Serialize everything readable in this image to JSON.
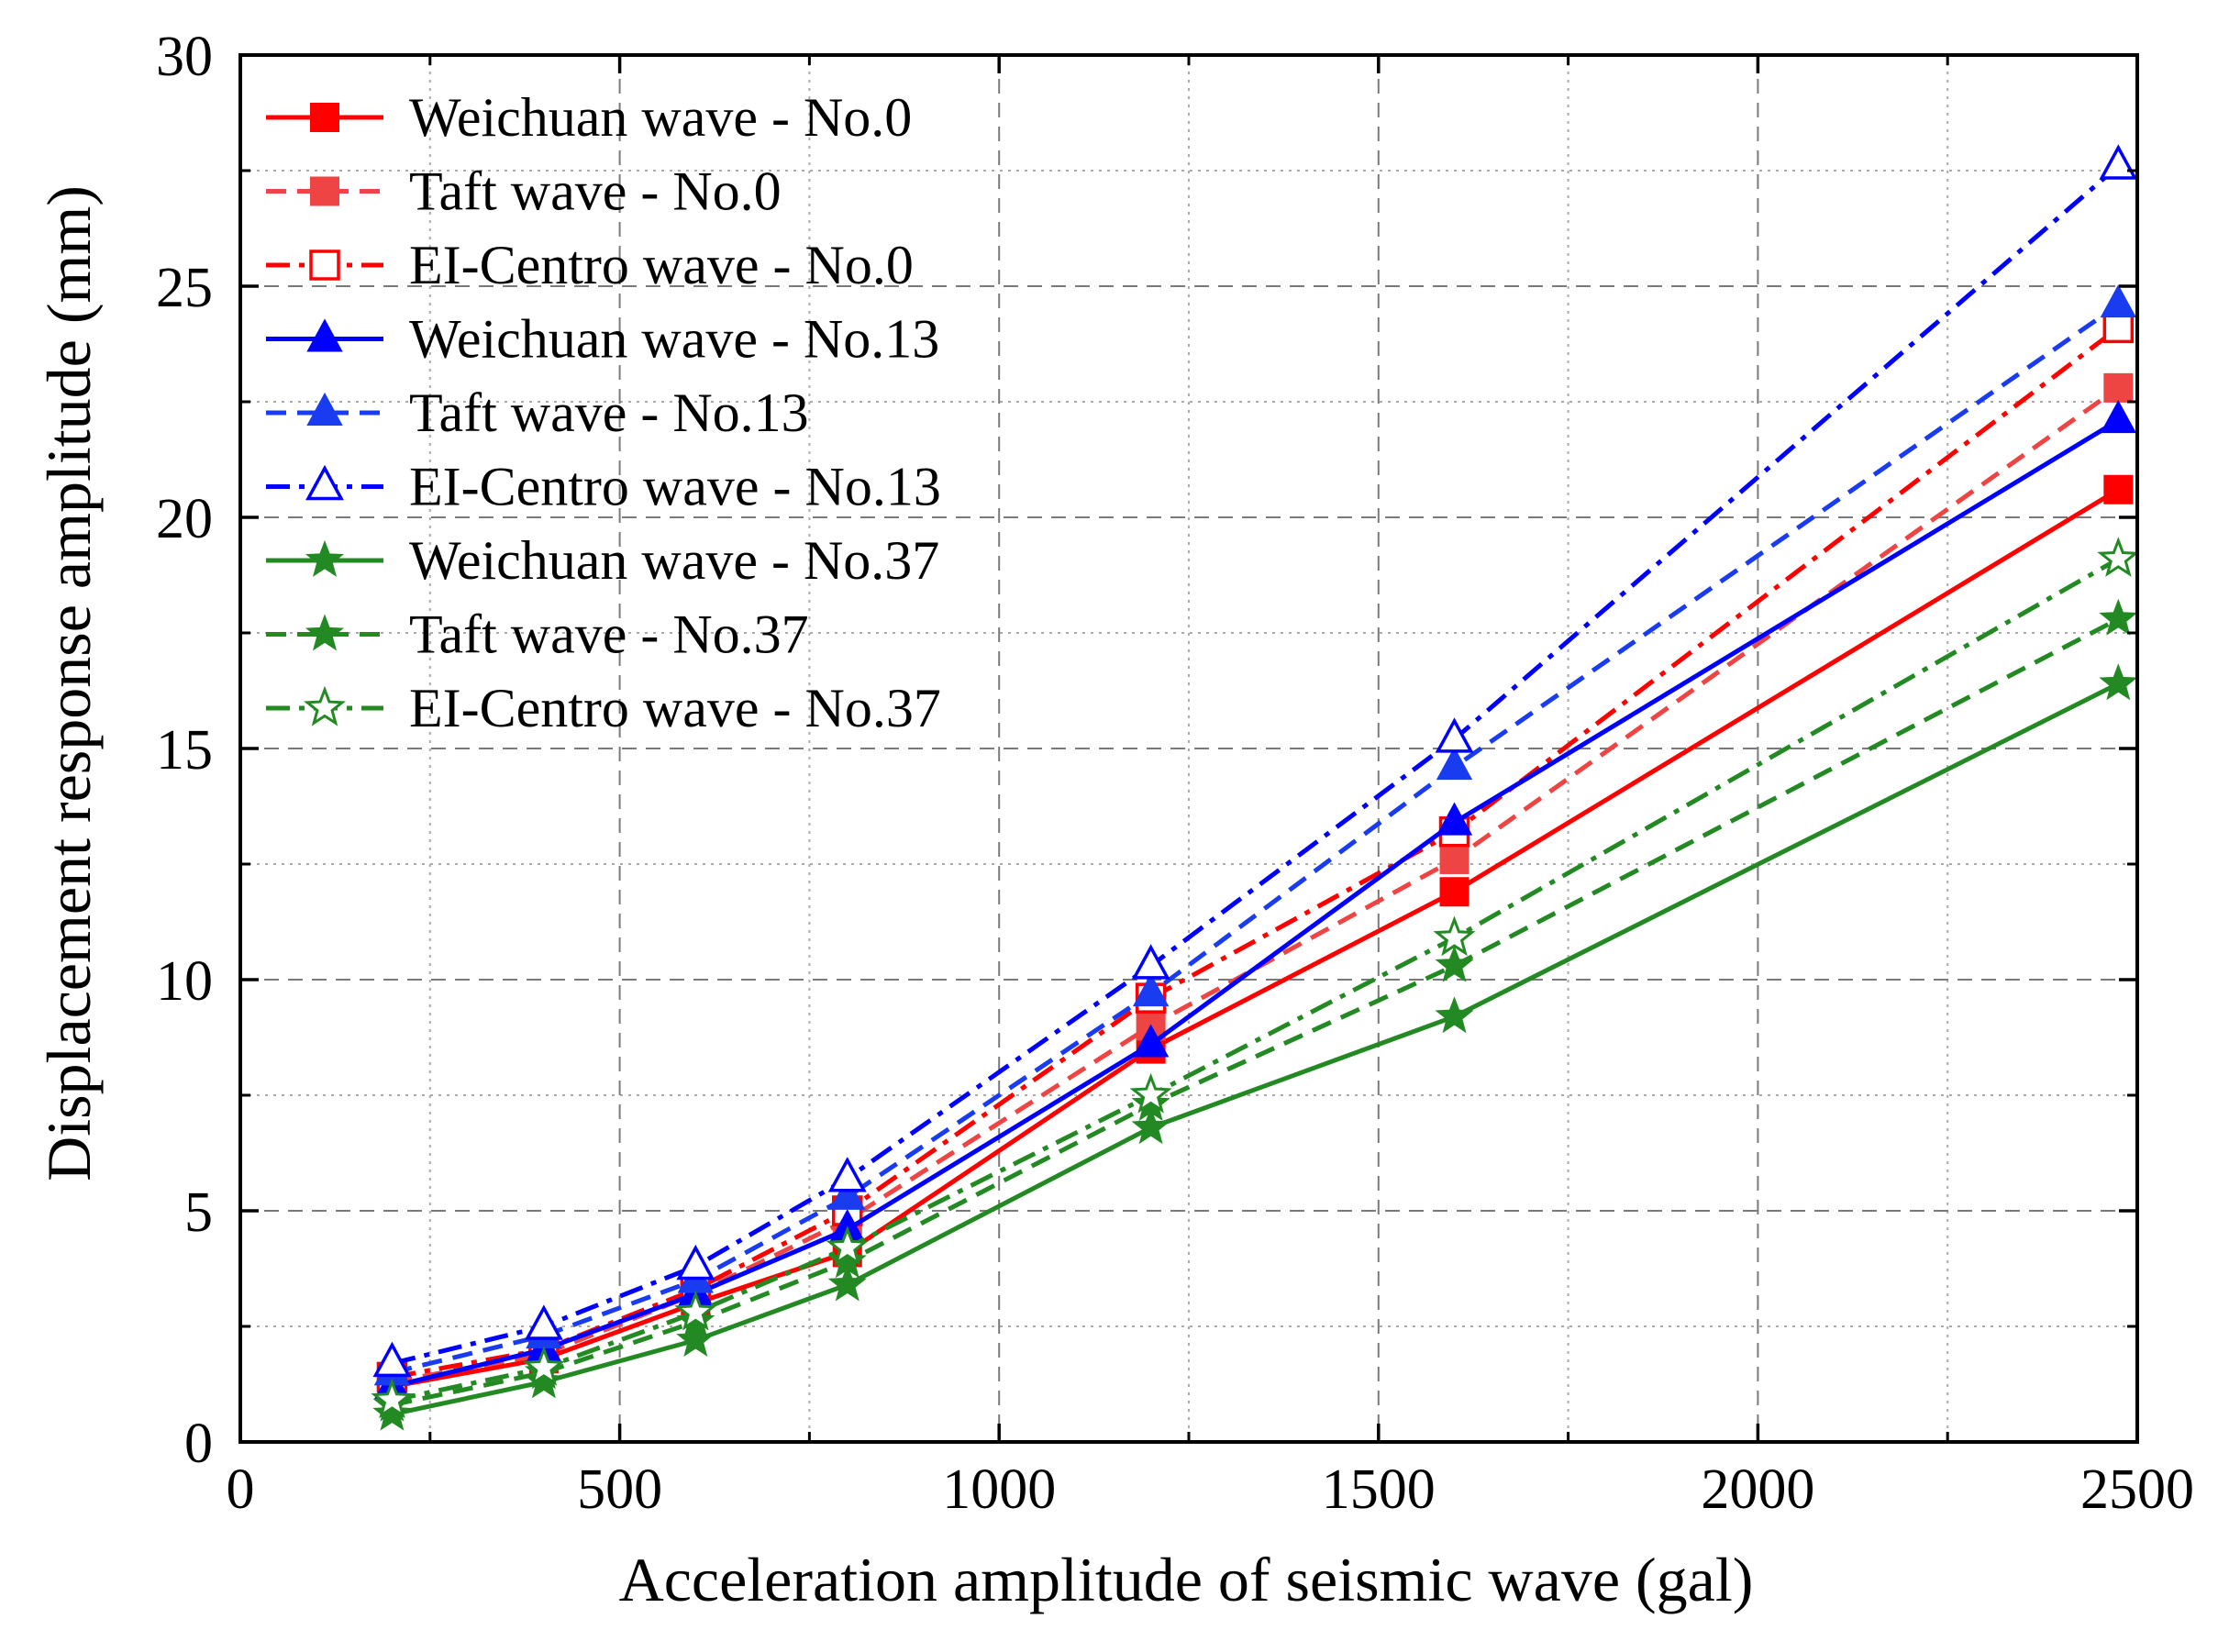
{
  "chart_data": {
    "type": "line",
    "title": "",
    "xlabel": "Acceleration amplitude of seismic wave (gal)",
    "ylabel": "Displacement response amplitude (mm)",
    "xlim": [
      0,
      2500
    ],
    "ylim": [
      0,
      30
    ],
    "xticks": [
      0,
      500,
      1000,
      1500,
      2000,
      2500
    ],
    "yticks": [
      0,
      5,
      10,
      15,
      20,
      25,
      30
    ],
    "grid": true,
    "legend_position": "top-left",
    "x": [
      200,
      400,
      600,
      800,
      1200,
      1600,
      2475
    ],
    "series": [
      {
        "name": "Weichuan wave - No.0",
        "color": "#ff0000",
        "line_style": "solid",
        "marker": "square-filled",
        "values": [
          1.2,
          1.8,
          3.0,
          4.1,
          8.5,
          11.9,
          20.6
        ]
      },
      {
        "name": "Taft wave - No.0",
        "color": "#ee4444",
        "line_style": "dash",
        "marker": "square-filled",
        "values": [
          1.3,
          1.9,
          3.2,
          4.8,
          9.0,
          12.6,
          22.8
        ]
      },
      {
        "name": "EI-Centro wave - No.0",
        "color": "#ff0000",
        "line_style": "dashdot",
        "marker": "square-open",
        "values": [
          1.4,
          2.0,
          3.3,
          5.0,
          9.6,
          13.2,
          24.1
        ]
      },
      {
        "name": "Weichuan wave - No.13",
        "color": "#0000ff",
        "line_style": "solid",
        "marker": "triangle-filled",
        "values": [
          1.2,
          2.0,
          3.2,
          4.6,
          8.6,
          13.4,
          22.1
        ]
      },
      {
        "name": "Taft wave - No.13",
        "color": "#1a3cf0",
        "line_style": "dash",
        "marker": "triangle-filled",
        "values": [
          1.5,
          2.3,
          3.5,
          5.3,
          9.7,
          14.6,
          24.6
        ]
      },
      {
        "name": "EI-Centro wave - No.13",
        "color": "#0000ff",
        "line_style": "dashdot",
        "marker": "triangle-open",
        "values": [
          1.7,
          2.5,
          3.8,
          5.7,
          10.3,
          15.2,
          27.6
        ]
      },
      {
        "name": "Weichuan wave - No.37",
        "color": "#238a23",
        "line_style": "solid",
        "marker": "star-filled",
        "values": [
          0.6,
          1.3,
          2.2,
          3.4,
          6.8,
          9.2,
          16.4
        ]
      },
      {
        "name": "Taft wave - No.37",
        "color": "#238a23",
        "line_style": "dash",
        "marker": "star-filled",
        "values": [
          0.8,
          1.5,
          2.6,
          3.9,
          7.3,
          10.3,
          17.8
        ]
      },
      {
        "name": "EI-Centro wave - No.37",
        "color": "#238a23",
        "line_style": "dashdot",
        "marker": "star-open",
        "values": [
          0.9,
          1.6,
          2.8,
          4.2,
          7.5,
          10.9,
          19.1
        ]
      }
    ]
  }
}
